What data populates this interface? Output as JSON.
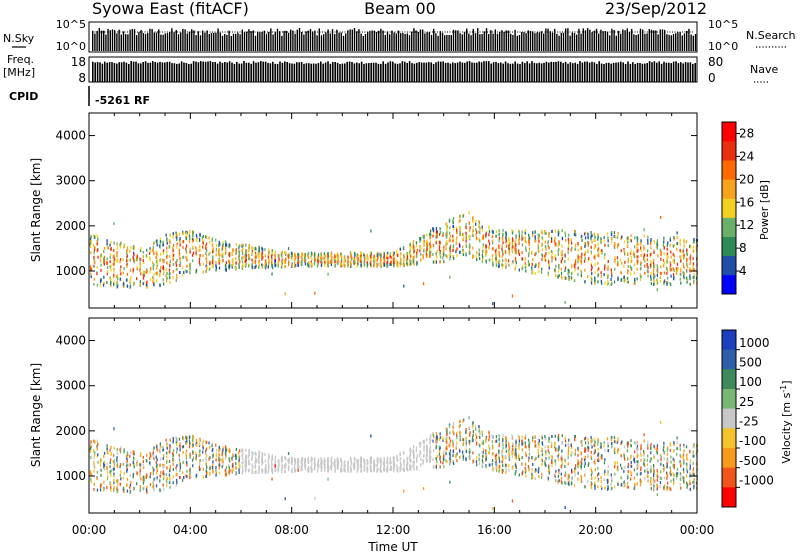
{
  "header": {
    "station": "Syowa East (fitACF)",
    "beam": "Beam 00",
    "date": "23/Sep/2012"
  },
  "status_panels": {
    "nsky_label": "N.Sky",
    "nsky_ticks": [
      "10^5",
      "10^0"
    ],
    "nsearch_label": "N.Search",
    "nsearch_ticks": [
      "10^5",
      "10^0"
    ],
    "freq_label": "Freq.",
    "freq_unit": "[MHz]",
    "freq_ticks": [
      "18",
      "8"
    ],
    "nave_label": "Nave",
    "nave_ticks": [
      "80",
      "0"
    ],
    "cpid_label": "CPID",
    "cpid_value": "-5261 RF"
  },
  "chart_data": [
    {
      "type": "heatmap",
      "panel": "power",
      "ylabel": "Slant Range [km]",
      "ylim": [
        180,
        4500
      ],
      "yticks": [
        1000,
        2000,
        3000,
        4000
      ],
      "xlim": [
        0,
        24
      ],
      "colorbar_label": "Power [dB]",
      "colorbar_ticks": [
        "4",
        "8",
        "12",
        "16",
        "20",
        "24",
        "28"
      ],
      "colorbar_range": [
        0,
        30
      ],
      "colors": [
        "#0000ff",
        "#1f4fa8",
        "#2e8b57",
        "#6aaf6a",
        "#f2d022",
        "#f7a21b",
        "#ff6a00",
        "#e83010",
        "#ff0000"
      ],
      "scatter_band": [
        {
          "t": 0,
          "low": 700,
          "high": 1900
        },
        {
          "t": 2,
          "low": 600,
          "high": 1500
        },
        {
          "t": 3,
          "low": 700,
          "high": 1800
        },
        {
          "t": 4,
          "low": 900,
          "high": 1900
        },
        {
          "t": 5,
          "low": 1000,
          "high": 1700
        },
        {
          "t": 8,
          "low": 1100,
          "high": 1400
        },
        {
          "t": 12,
          "low": 1100,
          "high": 1400
        },
        {
          "t": 14,
          "low": 1200,
          "high": 2100
        },
        {
          "t": 15,
          "low": 1300,
          "high": 2300
        },
        {
          "t": 16,
          "low": 1100,
          "high": 1900
        },
        {
          "t": 20,
          "low": 700,
          "high": 1900
        },
        {
          "t": 24,
          "low": 700,
          "high": 1700
        }
      ]
    },
    {
      "type": "heatmap",
      "panel": "velocity",
      "ylabel": "Slant Range [km]",
      "ylim": [
        180,
        4500
      ],
      "yticks": [
        1000,
        2000,
        3000,
        4000
      ],
      "xlim": [
        0,
        24
      ],
      "xlabel": "Time UT",
      "xticks": [
        "00:00",
        "04:00",
        "08:00",
        "12:00",
        "16:00",
        "20:00",
        "00:00"
      ],
      "colorbar_label": "Velocity [m s-1]",
      "colorbar_ticks": [
        "1000",
        "500",
        "100",
        "25",
        "-25",
        "-100",
        "-500",
        "-1000"
      ],
      "colors": [
        "#1b3fbd",
        "#2c5fa8",
        "#3f8a5a",
        "#77b877",
        "#c8c8c8",
        "#f4c22a",
        "#f79a1b",
        "#f0551a",
        "#ff0000"
      ]
    }
  ]
}
